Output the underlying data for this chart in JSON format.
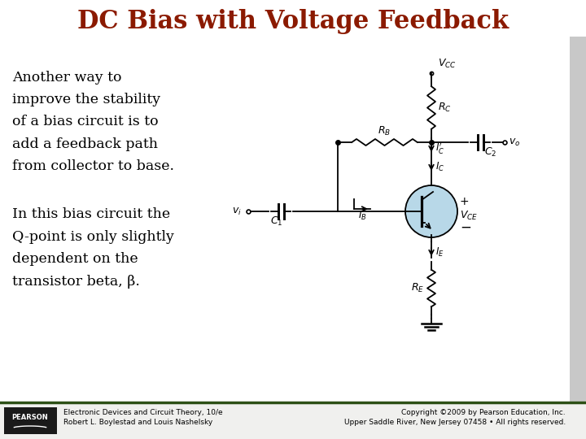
{
  "title": "DC Bias with Voltage Feedback",
  "title_color": "#8B1A00",
  "title_fontsize": 22,
  "bg_color": "#FFFFFF",
  "text_color": "#000000",
  "body_text1": "Another way to\nimprove the stability\nof a bias circuit is to\nadd a feedback path\nfrom collector to base.",
  "body_text2": "In this bias circuit the\nQ-point is only slightly\ndependent on the\ntransistor beta, β.",
  "body_fontsize": 12.5,
  "footer_left1": "Electronic Devices and Circuit Theory, 10/e",
  "footer_left2": "Robert L. Boylestad and Louis Nashelsky",
  "footer_right1": "Copyright ©2009 by Pearson Education, Inc.",
  "footer_right2": "Upper Saddle River, New Jersey 07458 • All rights reserved.",
  "footer_fontsize": 6.5,
  "pearson_box_color": "#1a1a1a",
  "circuit_color": "#000000",
  "transistor_circle_color": "#B8D8E8",
  "border_color": "#999999",
  "panel_bg": "#FFFFFF",
  "right_border_color": "#AAAAAA",
  "footer_bg": "#F0F0EE",
  "footer_border_color": "#2D5016"
}
